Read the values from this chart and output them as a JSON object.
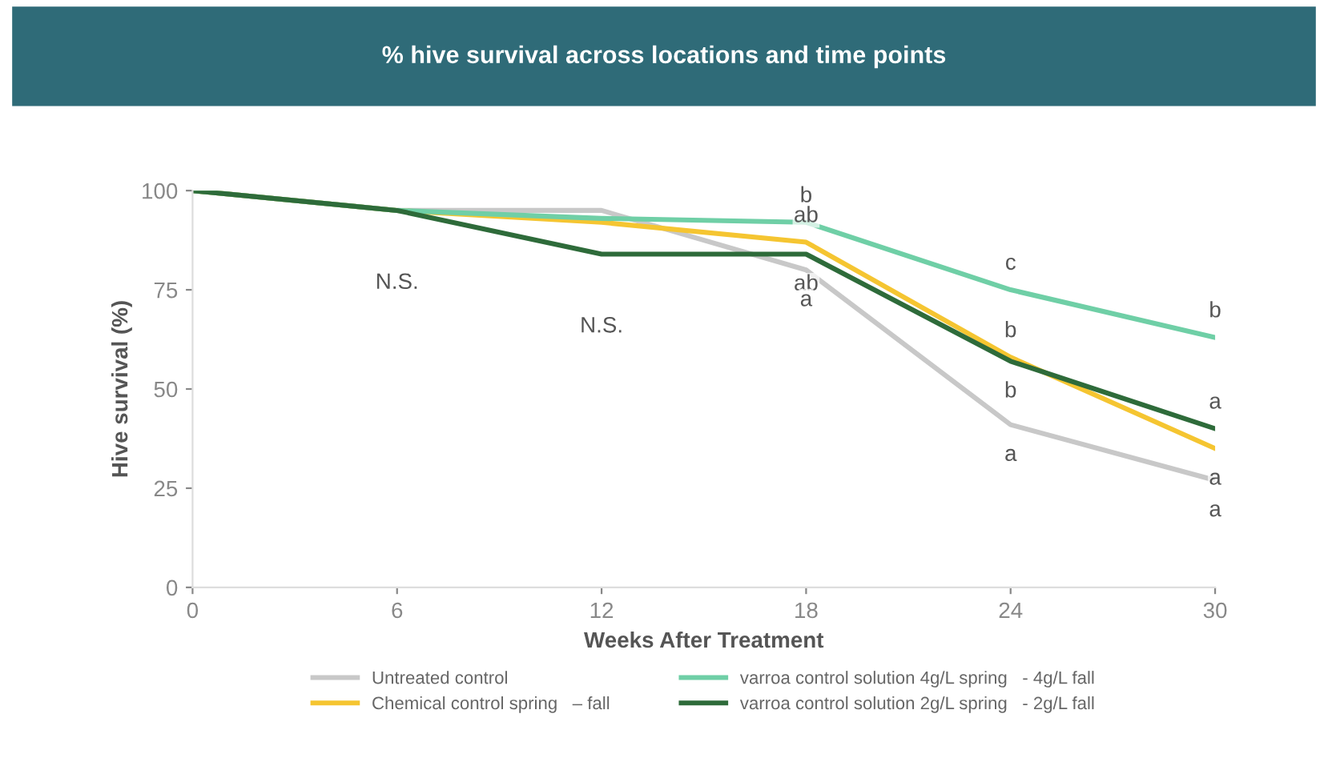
{
  "chart_data": {
    "type": "line",
    "title": "% hive survival across locations and time points",
    "xlabel": "Weeks After Treatment",
    "ylabel": "Hive survival (%)",
    "x": [
      0,
      6,
      12,
      18,
      24,
      30
    ],
    "xlim": [
      0,
      30
    ],
    "xticks": [
      0,
      6,
      12,
      18,
      24,
      30
    ],
    "ylim": [
      0,
      100
    ],
    "yticks": [
      0,
      25,
      50,
      75,
      100
    ],
    "grid": false,
    "legend": "bottom",
    "marker": "none",
    "line_style": "solid",
    "series": [
      {
        "name": "Untreated control",
        "color": "#c8c8c8",
        "values": [
          100,
          95,
          95,
          80,
          41,
          27
        ]
      },
      {
        "name": "Chemical control spring   – fall",
        "color": "#f5c531",
        "values": [
          100,
          95,
          92,
          87,
          58,
          35
        ]
      },
      {
        "name": "varroa control solution 4g/L spring   - 4g/L fall",
        "color": "#6fcfa6",
        "values": [
          100,
          95,
          93,
          92,
          75,
          63
        ]
      },
      {
        "name": "varroa control solution 2g/L spring   - 2g/L fall",
        "color": "#2e6b3a",
        "values": [
          100,
          95,
          84,
          84,
          57,
          40
        ]
      }
    ],
    "annotations": [
      {
        "text": "N.S.",
        "x": 6,
        "y": 95
      },
      {
        "text": "N.S.",
        "x": 12,
        "y": 84
      },
      {
        "text": "b",
        "x": 18,
        "y": 92
      },
      {
        "text": "ab",
        "x": 18,
        "y": 87
      },
      {
        "text": "ab",
        "x": 18,
        "y": 84
      },
      {
        "text": "a",
        "x": 18,
        "y": 80
      },
      {
        "text": "c",
        "x": 24,
        "y": 75
      },
      {
        "text": "b",
        "x": 24,
        "y": 58
      },
      {
        "text": "b",
        "x": 24,
        "y": 57
      },
      {
        "text": "a",
        "x": 24,
        "y": 41
      },
      {
        "text": "b",
        "x": 30,
        "y": 63
      },
      {
        "text": "a",
        "x": 30,
        "y": 40
      },
      {
        "text": "a",
        "x": 30,
        "y": 35
      },
      {
        "text": "a",
        "x": 30,
        "y": 27
      }
    ]
  }
}
